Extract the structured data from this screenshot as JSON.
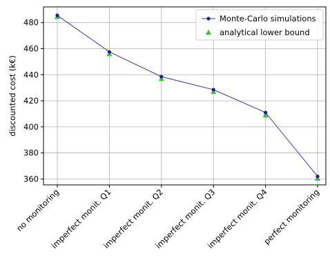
{
  "chart_data": {
    "type": "line",
    "categories": [
      "no monitoring",
      "imperfect monit. Q1",
      "imperfect monit. Q2",
      "imperfect monit. Q3",
      "imperfect monit. Q4",
      "perfect monitoring"
    ],
    "series": [
      {
        "name": "Monte-Carlo simulations",
        "values": [
          485.5,
          457.5,
          438.5,
          428.5,
          411,
          362
        ],
        "color": "#1f1f8a",
        "marker": "circle",
        "line": true
      },
      {
        "name": "analytical lower bound",
        "values": [
          484.5,
          456,
          437,
          427,
          409,
          360.5
        ],
        "color": "#44bb44",
        "marker": "triangle",
        "line": false
      }
    ],
    "title": "",
    "xlabel": "",
    "ylabel": "discounted cost (k€)",
    "ylim": [
      355.5,
      492
    ],
    "yticks": [
      360,
      380,
      400,
      420,
      440,
      460,
      480
    ],
    "grid": true,
    "legend_position": "top-right"
  }
}
